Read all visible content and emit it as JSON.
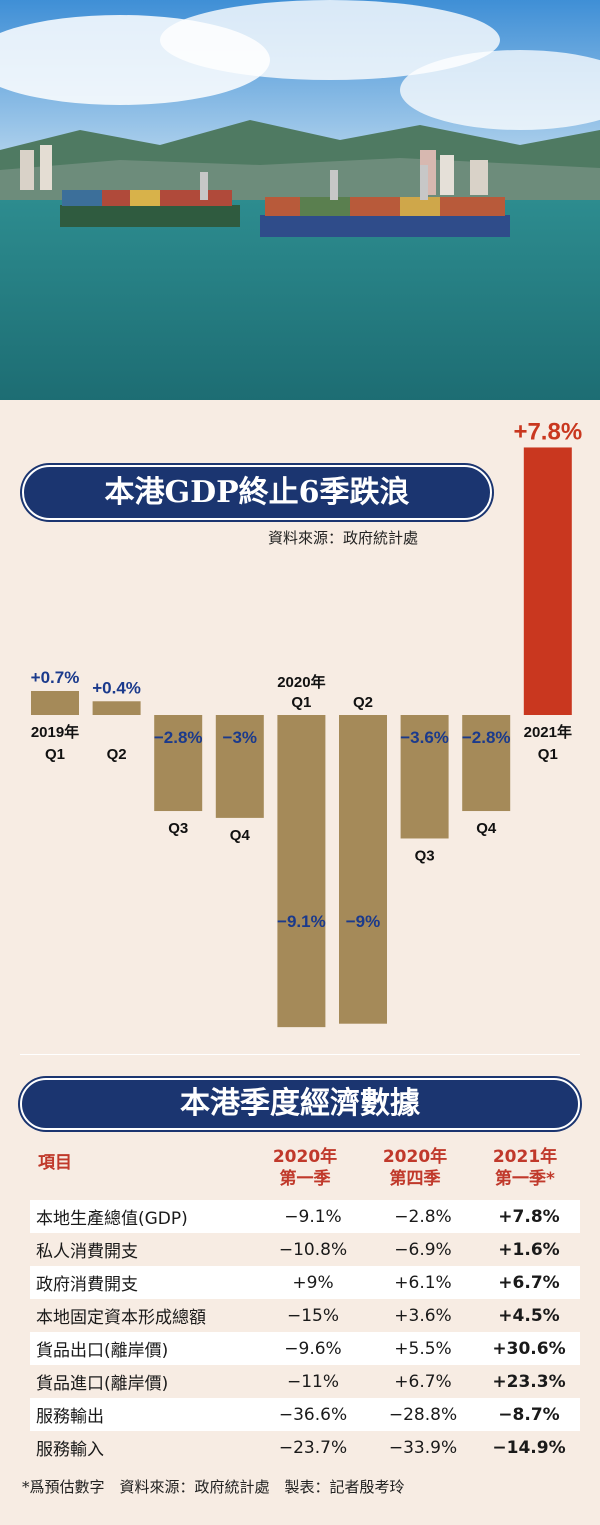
{
  "chart_data": {
    "type": "bar",
    "title": "本港GDP終止6季跌浪",
    "source": "資料來源：政府統計處",
    "categories": [
      {
        "top": "2019年",
        "bottom": "Q1"
      },
      {
        "top": "",
        "bottom": "Q2"
      },
      {
        "top": "",
        "bottom": "Q3"
      },
      {
        "top": "",
        "bottom": "Q4"
      },
      {
        "top": "2020年",
        "bottom": "Q1"
      },
      {
        "top": "",
        "bottom": "Q2"
      },
      {
        "top": "",
        "bottom": "Q3"
      },
      {
        "top": "",
        "bottom": "Q4"
      },
      {
        "top": "2021年",
        "bottom": "Q1"
      }
    ],
    "values": [
      0.7,
      0.4,
      -2.8,
      -3,
      -9.1,
      -9,
      -3.6,
      -2.8,
      7.8
    ],
    "value_labels": [
      "+0.7%",
      "+0.4%",
      "−2.8%",
      "−3%",
      "−9.1%",
      "−9%",
      "−3.6%",
      "−2.8%",
      "+7.8%"
    ],
    "colors": {
      "default": "#a58a59",
      "highlight": "#c9371f",
      "label": "#1b3a8c",
      "highlight_label": "#c9371f"
    },
    "highlight_index": 8
  },
  "table": {
    "title": "本港季度經濟數據",
    "header": {
      "item": "項目",
      "c1_line1": "2020年",
      "c1_line2": "第一季",
      "c2_line1": "2020年",
      "c2_line2": "第四季",
      "c3_line1": "2021年",
      "c3_line2": "第一季*"
    },
    "rows": [
      {
        "item": "本地生產總值(GDP)",
        "c1": "−9.1%",
        "c2": "−2.8%",
        "c3": "+7.8%"
      },
      {
        "item": "私人消費開支",
        "c1": "−10.8%",
        "c2": "−6.9%",
        "c3": "+1.6%"
      },
      {
        "item": "政府消費開支",
        "c1": "+9%",
        "c2": "+6.1%",
        "c3": "+6.7%"
      },
      {
        "item": "本地固定資本形成總額",
        "c1": "−15%",
        "c2": "+3.6%",
        "c3": "+4.5%"
      },
      {
        "item": "貨品出口(離岸價)",
        "c1": "−9.6%",
        "c2": "+5.5%",
        "c3": "+30.6%"
      },
      {
        "item": "貨品進口(離岸價)",
        "c1": "−11%",
        "c2": "+6.7%",
        "c3": "+23.3%"
      },
      {
        "item": "服務輸出",
        "c1": "−36.6%",
        "c2": "−28.8%",
        "c3": "−8.7%"
      },
      {
        "item": "服務輸入",
        "c1": "−23.7%",
        "c2": "−33.9%",
        "c3": "−14.9%"
      }
    ],
    "footnote": "*爲預估數字　資料來源：政府統計處　製表：記者殷考玲"
  }
}
